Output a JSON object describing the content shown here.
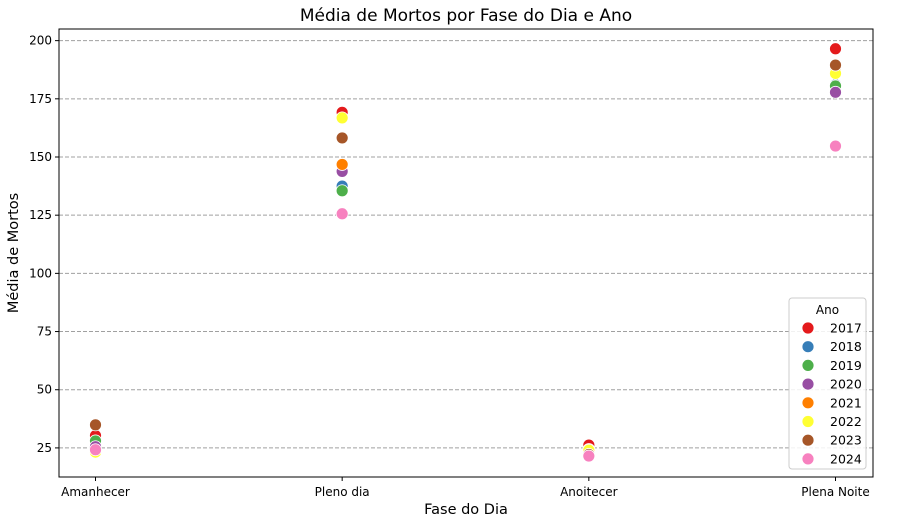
{
  "chart_data": {
    "type": "scatter",
    "title": "Média de Mortos por Fase do Dia e Ano",
    "xlabel": "Fase do Dia",
    "ylabel": "Média de Mortos",
    "categories": [
      "Amanhecer",
      "Pleno dia",
      "Anoitecer",
      "Plena Noite"
    ],
    "ylim": [
      12.5,
      205
    ],
    "yticks": [
      25,
      50,
      75,
      100,
      125,
      150,
      175,
      200
    ],
    "grid": "horizontal dashed",
    "legend": {
      "title": "Ano",
      "placement": "lower-right"
    },
    "series": [
      {
        "name": "2017",
        "color": "#e41a1c",
        "values": [
          30.3,
          169.2,
          26.2,
          196.5
        ]
      },
      {
        "name": "2018",
        "color": "#377eb8",
        "values": [
          26.2,
          137.5,
          24.3,
          181.0
        ]
      },
      {
        "name": "2019",
        "color": "#4daf4a",
        "values": [
          28.0,
          135.5,
          22.4,
          180.5
        ]
      },
      {
        "name": "2020",
        "color": "#984ea3",
        "values": [
          25.5,
          143.8,
          22.3,
          177.8
        ]
      },
      {
        "name": "2021",
        "color": "#ff7f00",
        "values": [
          23.6,
          146.8,
          23.5,
          186.7
        ]
      },
      {
        "name": "2022",
        "color": "#ffff33",
        "values": [
          23.2,
          166.8,
          24.0,
          185.9
        ]
      },
      {
        "name": "2023",
        "color": "#a65628",
        "values": [
          34.9,
          158.2,
          22.2,
          189.5
        ]
      },
      {
        "name": "2024",
        "color": "#f781bf",
        "values": [
          24.2,
          125.6,
          21.5,
          154.7
        ]
      }
    ]
  }
}
